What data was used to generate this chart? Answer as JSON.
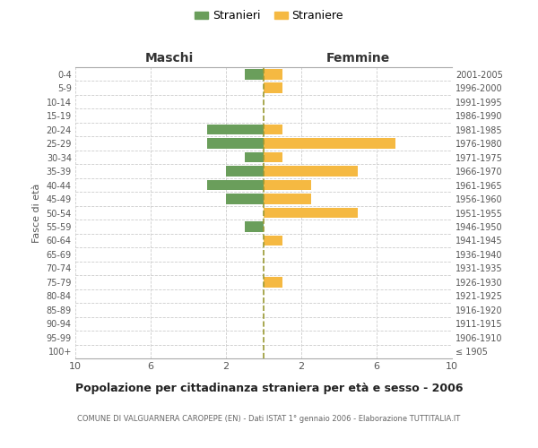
{
  "age_groups": [
    "100+",
    "95-99",
    "90-94",
    "85-89",
    "80-84",
    "75-79",
    "70-74",
    "65-69",
    "60-64",
    "55-59",
    "50-54",
    "45-49",
    "40-44",
    "35-39",
    "30-34",
    "25-29",
    "20-24",
    "15-19",
    "10-14",
    "5-9",
    "0-4"
  ],
  "birth_years": [
    "≤ 1905",
    "1906-1910",
    "1911-1915",
    "1916-1920",
    "1921-1925",
    "1926-1930",
    "1931-1935",
    "1936-1940",
    "1941-1945",
    "1946-1950",
    "1951-1955",
    "1956-1960",
    "1961-1965",
    "1966-1970",
    "1971-1975",
    "1976-1980",
    "1981-1985",
    "1986-1990",
    "1991-1995",
    "1996-2000",
    "2001-2005"
  ],
  "maschi": [
    0,
    0,
    0,
    0,
    0,
    0,
    0,
    0,
    0,
    1,
    0,
    2,
    3,
    2,
    1,
    3,
    3,
    0,
    0,
    0,
    1
  ],
  "femmine": [
    0,
    0,
    0,
    0,
    0,
    1,
    0,
    0,
    1,
    0,
    5,
    2.5,
    2.5,
    5,
    1,
    7,
    1,
    0,
    0,
    1,
    1
  ],
  "maschi_color": "#6a9e5b",
  "femmine_color": "#f5b942",
  "bg_color": "#ffffff",
  "grid_color": "#cccccc",
  "title": "Popolazione per cittadinanza straniera per età e sesso - 2006",
  "subtitle": "COMUNE DI VALGUARNERA CAROPEPE (EN) - Dati ISTAT 1° gennaio 2006 - Elaborazione TUTTITALIA.IT",
  "ylabel_left": "Fasce di età",
  "legend_maschi": "Stranieri",
  "legend_femmine": "Straniere",
  "xlim": 10
}
